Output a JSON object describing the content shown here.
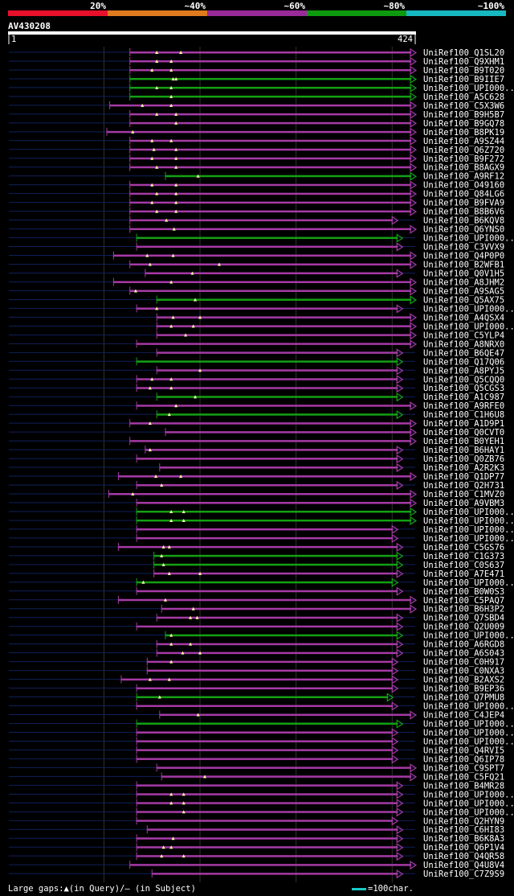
{
  "chart_data": {
    "type": "alignment",
    "query": {
      "name": "AV430208",
      "start": 1,
      "end": 424,
      "start_label": "1",
      "end_label": "424"
    },
    "identity_scale": [
      {
        "label": "20%",
        "color": "#e8102a"
      },
      {
        "label": "~40%",
        "color": "#e07a1e"
      },
      {
        "label": "~60%",
        "color": "#9a2a9a"
      },
      {
        "label": "~80%",
        "color": "#0e9a0e"
      },
      {
        "label": "~100%",
        "color": "#18b8c0"
      }
    ],
    "hits": [
      {
        "name": "UniRef100_Q1SL20",
        "s": 127,
        "e": 424,
        "c": "m",
        "t": [
          155,
          180
        ]
      },
      {
        "name": "UniRef100_Q9XHM1",
        "s": 127,
        "e": 424,
        "c": "m",
        "t": [
          155,
          170
        ]
      },
      {
        "name": "UniRef100_B9T020",
        "s": 127,
        "e": 424,
        "c": "m",
        "t": [
          150,
          170
        ]
      },
      {
        "name": "UniRef100_B9IIE7",
        "s": 127,
        "e": 424,
        "c": "g",
        "t": [
          172,
          175
        ]
      },
      {
        "name": "UniRef100_UPI000..",
        "s": 127,
        "e": 424,
        "c": "g",
        "t": [
          155,
          170
        ]
      },
      {
        "name": "UniRef100_A5C628",
        "s": 127,
        "e": 424,
        "c": "g",
        "t": [
          170
        ]
      },
      {
        "name": "UniRef100_C5X3W6",
        "s": 106,
        "e": 424,
        "c": "m",
        "t": [
          140,
          170
        ]
      },
      {
        "name": "UniRef100_B9H5B7",
        "s": 127,
        "e": 424,
        "c": "m",
        "t": [
          155,
          175
        ]
      },
      {
        "name": "UniRef100_B9GQ78",
        "s": 127,
        "e": 424,
        "c": "m",
        "t": [
          175
        ]
      },
      {
        "name": "UniRef100_B8PK19",
        "s": 103,
        "e": 424,
        "c": "m",
        "t": [
          130
        ]
      },
      {
        "name": "UniRef100_A9SZ44",
        "s": 127,
        "e": 424,
        "c": "m",
        "t": [
          150,
          170
        ]
      },
      {
        "name": "UniRef100_Q6Z720",
        "s": 127,
        "e": 424,
        "c": "m",
        "t": [
          152,
          175
        ]
      },
      {
        "name": "UniRef100_B9F272",
        "s": 127,
        "e": 424,
        "c": "m",
        "t": [
          150,
          175
        ]
      },
      {
        "name": "UniRef100_B8AGX9",
        "s": 127,
        "e": 424,
        "c": "m",
        "t": [
          155,
          175
        ]
      },
      {
        "name": "UniRef100_A9RF12",
        "s": 164,
        "e": 424,
        "c": "g",
        "t": [
          198
        ]
      },
      {
        "name": "UniRef100_O49160",
        "s": 127,
        "e": 424,
        "c": "m",
        "t": [
          150,
          175
        ]
      },
      {
        "name": "UniRef100_Q84LG6",
        "s": 127,
        "e": 424,
        "c": "m",
        "t": [
          155,
          175
        ]
      },
      {
        "name": "UniRef100_B9FVA9",
        "s": 127,
        "e": 424,
        "c": "m",
        "t": [
          150,
          175
        ]
      },
      {
        "name": "UniRef100_B8B6V6",
        "s": 127,
        "e": 424,
        "c": "m",
        "t": [
          155,
          175
        ]
      },
      {
        "name": "UniRef100_B6KQV8",
        "s": 127,
        "e": 405,
        "c": "m",
        "t": [
          165
        ]
      },
      {
        "name": "UniRef100_Q6YNS0",
        "s": 127,
        "e": 424,
        "c": "m",
        "t": [
          173
        ]
      },
      {
        "name": "UniRef100_UPI000..",
        "s": 134,
        "e": 410,
        "c": "g",
        "t": []
      },
      {
        "name": "UniRef100_C3VVX9",
        "s": 134,
        "e": 410,
        "c": "m",
        "t": []
      },
      {
        "name": "UniRef100_Q4P0P0",
        "s": 110,
        "e": 424,
        "c": "m",
        "t": [
          145,
          172
        ]
      },
      {
        "name": "UniRef100_B2WFB1",
        "s": 127,
        "e": 424,
        "c": "m",
        "t": [
          148,
          220
        ]
      },
      {
        "name": "UniRef100_Q0V1H5",
        "s": 143,
        "e": 410,
        "c": "m",
        "t": [
          192
        ]
      },
      {
        "name": "UniRef100_A8JHM2",
        "s": 110,
        "e": 424,
        "c": "m",
        "t": [
          170
        ]
      },
      {
        "name": "UniRef100_A9SAG5",
        "s": 127,
        "e": 424,
        "c": "m",
        "t": [
          133
        ]
      },
      {
        "name": "UniRef100_Q5AX75",
        "s": 155,
        "e": 424,
        "c": "g",
        "t": [
          195
        ]
      },
      {
        "name": "UniRef100_UPI000..",
        "s": 134,
        "e": 410,
        "c": "m",
        "t": [
          155
        ]
      },
      {
        "name": "UniRef100_A4QSX4",
        "s": 155,
        "e": 424,
        "c": "m",
        "t": [
          172,
          200
        ]
      },
      {
        "name": "UniRef100_UPI000..",
        "s": 155,
        "e": 424,
        "c": "m",
        "t": [
          170,
          193
        ]
      },
      {
        "name": "UniRef100_C5YLP4",
        "s": 155,
        "e": 424,
        "c": "m",
        "t": [
          185
        ]
      },
      {
        "name": "UniRef100_A8NRX0",
        "s": 134,
        "e": 424,
        "c": "m",
        "t": []
      },
      {
        "name": "UniRef100_B6QE47",
        "s": 155,
        "e": 410,
        "c": "m",
        "t": []
      },
      {
        "name": "UniRef100_Q17Q06",
        "s": 134,
        "e": 410,
        "c": "g",
        "t": []
      },
      {
        "name": "UniRef100_A8PYJ5",
        "s": 155,
        "e": 410,
        "c": "m",
        "t": [
          200
        ]
      },
      {
        "name": "UniRef100_Q5CQQ0",
        "s": 134,
        "e": 410,
        "c": "m",
        "t": [
          150,
          170
        ]
      },
      {
        "name": "UniRef100_Q5CGS3",
        "s": 134,
        "e": 410,
        "c": "m",
        "t": [
          148,
          170
        ]
      },
      {
        "name": "UniRef100_A1C987",
        "s": 155,
        "e": 410,
        "c": "g",
        "t": [
          195
        ]
      },
      {
        "name": "UniRef100_A9RFE0",
        "s": 134,
        "e": 424,
        "c": "m",
        "t": [
          175
        ]
      },
      {
        "name": "UniRef100_C1H6U8",
        "s": 155,
        "e": 410,
        "c": "g",
        "t": [
          168
        ]
      },
      {
        "name": "UniRef100_A1D9P1",
        "s": 127,
        "e": 424,
        "c": "m",
        "t": [
          148
        ]
      },
      {
        "name": "UniRef100_Q0CVT0",
        "s": 164,
        "e": 424,
        "c": "m",
        "t": []
      },
      {
        "name": "UniRef100_B0YEH1",
        "s": 127,
        "e": 424,
        "c": "m",
        "t": []
      },
      {
        "name": "UniRef100_B6HAY1",
        "s": 143,
        "e": 410,
        "c": "m",
        "t": [
          148
        ]
      },
      {
        "name": "UniRef100_Q0ZB76",
        "s": 134,
        "e": 410,
        "c": "m",
        "t": []
      },
      {
        "name": "UniRef100_A2R2K3",
        "s": 158,
        "e": 410,
        "c": "m",
        "t": []
      },
      {
        "name": "UniRef100_Q1DP77",
        "s": 115,
        "e": 424,
        "c": "m",
        "t": [
          154,
          180
        ]
      },
      {
        "name": "UniRef100_Q2H731",
        "s": 134,
        "e": 410,
        "c": "m",
        "t": [
          160
        ]
      },
      {
        "name": "UniRef100_C1MVZ0",
        "s": 105,
        "e": 424,
        "c": "m",
        "t": [
          130
        ]
      },
      {
        "name": "UniRef100_A9VBM3",
        "s": 134,
        "e": 424,
        "c": "m",
        "t": []
      },
      {
        "name": "UniRef100_UPI000..",
        "s": 134,
        "e": 424,
        "c": "g",
        "t": [
          170,
          183
        ]
      },
      {
        "name": "UniRef100_UPI000..",
        "s": 134,
        "e": 424,
        "c": "g",
        "t": [
          170,
          183
        ]
      },
      {
        "name": "UniRef100_UPI000..",
        "s": 134,
        "e": 405,
        "c": "m",
        "t": []
      },
      {
        "name": "UniRef100_UPI000..",
        "s": 134,
        "e": 405,
        "c": "m",
        "t": []
      },
      {
        "name": "UniRef100_C5GS76",
        "s": 115,
        "e": 410,
        "c": "m",
        "t": [
          162,
          168
        ]
      },
      {
        "name": "UniRef100_C1G373",
        "s": 152,
        "e": 410,
        "c": "g",
        "t": [
          160
        ]
      },
      {
        "name": "UniRef100_C0S637",
        "s": 152,
        "e": 410,
        "c": "g",
        "t": [
          162
        ]
      },
      {
        "name": "UniRef100_A7E471",
        "s": 152,
        "e": 410,
        "c": "m",
        "t": [
          168,
          200
        ]
      },
      {
        "name": "UniRef100_UPI000..",
        "s": 134,
        "e": 405,
        "c": "g",
        "t": [
          141
        ]
      },
      {
        "name": "UniRef100_B0W0S3",
        "s": 134,
        "e": 410,
        "c": "m",
        "t": []
      },
      {
        "name": "UniRef100_C5PAQ7",
        "s": 115,
        "e": 424,
        "c": "m",
        "t": [
          164
        ]
      },
      {
        "name": "UniRef100_B6H3P2",
        "s": 160,
        "e": 424,
        "c": "m",
        "t": [
          193
        ]
      },
      {
        "name": "UniRef100_Q7SBD4",
        "s": 155,
        "e": 410,
        "c": "m",
        "t": [
          190,
          197
        ]
      },
      {
        "name": "UniRef100_Q2U009",
        "s": 134,
        "e": 410,
        "c": "m",
        "t": []
      },
      {
        "name": "UniRef100_UPI000..",
        "s": 164,
        "e": 410,
        "c": "g",
        "t": [
          170
        ]
      },
      {
        "name": "UniRef100_A6RGD8",
        "s": 155,
        "e": 410,
        "c": "m",
        "t": [
          170,
          190
        ]
      },
      {
        "name": "UniRef100_A6S043",
        "s": 155,
        "e": 410,
        "c": "m",
        "t": [
          182,
          200
        ]
      },
      {
        "name": "UniRef100_C0H917",
        "s": 145,
        "e": 405,
        "c": "m",
        "t": [
          170
        ]
      },
      {
        "name": "UniRef100_C0NXA3",
        "s": 145,
        "e": 405,
        "c": "m",
        "t": []
      },
      {
        "name": "UniRef100_B2AXS2",
        "s": 118,
        "e": 405,
        "c": "m",
        "t": [
          148,
          168
        ]
      },
      {
        "name": "UniRef100_B9EP36",
        "s": 134,
        "e": 405,
        "c": "m",
        "t": []
      },
      {
        "name": "UniRef100_Q7PMU8",
        "s": 134,
        "e": 400,
        "c": "g",
        "t": [
          158
        ]
      },
      {
        "name": "UniRef100_UPI000..",
        "s": 134,
        "e": 405,
        "c": "m",
        "t": []
      },
      {
        "name": "UniRef100_C4JEP4",
        "s": 158,
        "e": 424,
        "c": "m",
        "t": [
          198
        ]
      },
      {
        "name": "UniRef100_UPI000..",
        "s": 134,
        "e": 410,
        "c": "g",
        "t": []
      },
      {
        "name": "UniRef100_UPI000..",
        "s": 134,
        "e": 405,
        "c": "m",
        "t": []
      },
      {
        "name": "UniRef100_UPI000..",
        "s": 134,
        "e": 405,
        "c": "m",
        "t": []
      },
      {
        "name": "UniRef100_Q4RVI5",
        "s": 134,
        "e": 405,
        "c": "m",
        "t": []
      },
      {
        "name": "UniRef100_Q6IP78",
        "s": 134,
        "e": 405,
        "c": "m",
        "t": []
      },
      {
        "name": "UniRef100_C9SPT7",
        "s": 155,
        "e": 424,
        "c": "m",
        "t": []
      },
      {
        "name": "UniRef100_C5FQ21",
        "s": 160,
        "e": 424,
        "c": "m",
        "t": [
          205
        ]
      },
      {
        "name": "UniRef100_B4MR28",
        "s": 134,
        "e": 410,
        "c": "m",
        "t": []
      },
      {
        "name": "UniRef100_UPI000..",
        "s": 134,
        "e": 410,
        "c": "m",
        "t": [
          170,
          183
        ]
      },
      {
        "name": "UniRef100_UPI000..",
        "s": 134,
        "e": 410,
        "c": "m",
        "t": [
          170,
          183
        ]
      },
      {
        "name": "UniRef100_UPI000..",
        "s": 134,
        "e": 410,
        "c": "m",
        "t": [
          183
        ]
      },
      {
        "name": "UniRef100_Q2HYN9",
        "s": 134,
        "e": 405,
        "c": "m",
        "t": []
      },
      {
        "name": "UniRef100_C6HI83",
        "s": 145,
        "e": 410,
        "c": "m",
        "t": []
      },
      {
        "name": "UniRef100_B6K8A3",
        "s": 134,
        "e": 410,
        "c": "m",
        "t": [
          172
        ]
      },
      {
        "name": "UniRef100_Q6P1V4",
        "s": 134,
        "e": 410,
        "c": "m",
        "t": [
          162,
          170
        ]
      },
      {
        "name": "UniRef100_Q4QR58",
        "s": 134,
        "e": 410,
        "c": "m",
        "t": [
          160,
          183
        ]
      },
      {
        "name": "UniRef100_Q4U8V4",
        "s": 127,
        "e": 424,
        "c": "m",
        "t": []
      },
      {
        "name": "UniRef100_C7Z9S9",
        "s": 150,
        "e": 410,
        "c": "m",
        "t": []
      }
    ],
    "legend": {
      "text": "Large gaps:▲(in Query)/— (in Subject)",
      "scale_label": "=100char."
    }
  },
  "colors": {
    "magenta": "#a63aa6",
    "green": "#14a014",
    "query_line": "#10205a",
    "grid": "#303030",
    "triangle": "#ffffaa",
    "scale_bar": "#18c8c8"
  }
}
